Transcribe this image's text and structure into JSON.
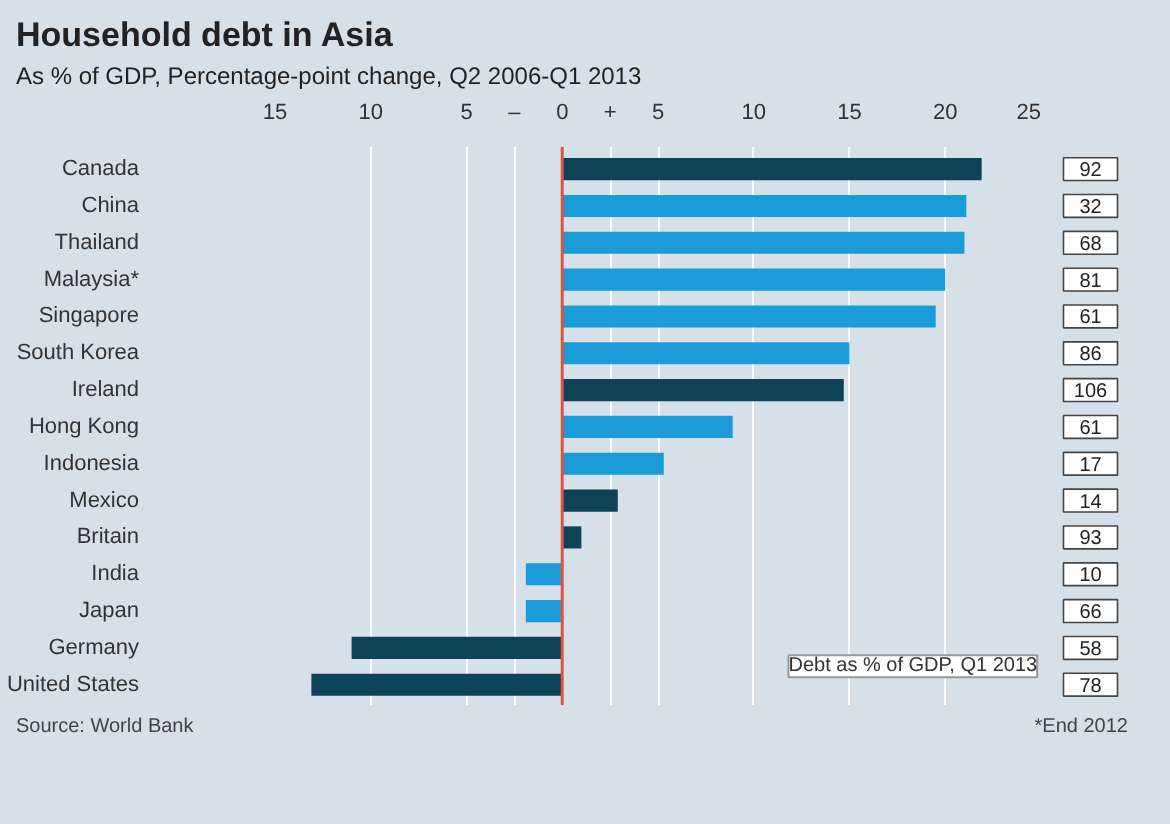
{
  "chart_data": {
    "type": "bar",
    "orientation": "horizontal",
    "title": "Household debt in Asia",
    "subtitle": "As % of GDP, Percentage-point change, Q2 2006-Q1 2013",
    "categories": [
      "Canada",
      "China",
      "Thailand",
      "Malaysia*",
      "Singapore",
      "South Korea",
      "Ireland",
      "Hong Kong",
      "Indonesia",
      "Mexico",
      "Britain",
      "India",
      "Japan",
      "Germany",
      "United States"
    ],
    "values": [
      21.9,
      21.1,
      21.0,
      20.0,
      19.5,
      15.0,
      14.7,
      8.9,
      5.3,
      2.9,
      1.0,
      -1.9,
      -1.9,
      -11.0,
      -13.1
    ],
    "colors": [
      "#0d4259",
      "#1b9bd7",
      "#1b9bd7",
      "#1b9bd7",
      "#1b9bd7",
      "#1b9bd7",
      "#0d4259",
      "#1b9bd7",
      "#1b9bd7",
      "#0d4259",
      "#0d4259",
      "#1b9bd7",
      "#1b9bd7",
      "#0d4259",
      "#0d4259"
    ],
    "xlim": [
      -15,
      25
    ],
    "xticks": [
      {
        "value": -15,
        "label": "15"
      },
      {
        "value": -10,
        "label": "10"
      },
      {
        "value": -5,
        "label": "5"
      },
      {
        "value": -2.5,
        "label": "–"
      },
      0,
      {
        "value": 2.5,
        "label": "+"
      },
      5,
      10,
      15,
      20,
      25
    ],
    "grid": "x",
    "ref_lines": [
      {
        "axis": "x",
        "value": 0,
        "color": "#e0503a"
      }
    ],
    "annotations": [
      "92",
      "32",
      "68",
      "81",
      "61",
      "86",
      "106",
      "61",
      "17",
      "14",
      "93",
      "10",
      "66",
      "58",
      "78",
      "Debt as % of GDP, Q1 2013",
      "Source: World Bank",
      "*End 2012"
    ]
  }
}
